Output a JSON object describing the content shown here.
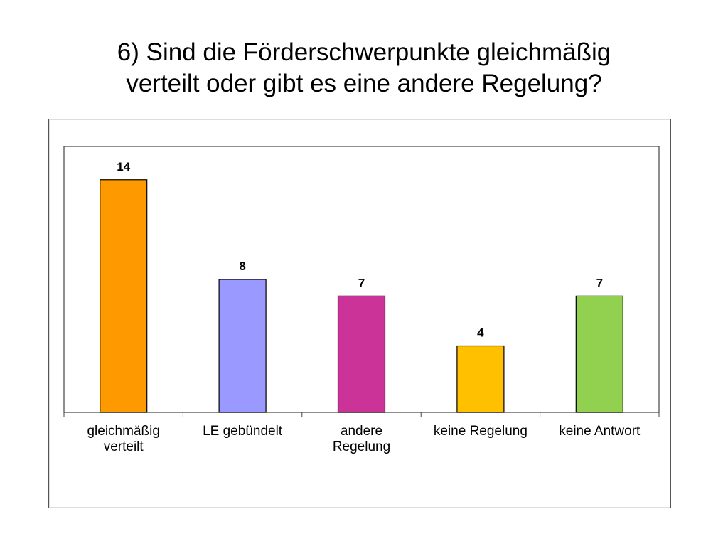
{
  "title": {
    "line1": "6) Sind die Förderschwerpunkte gleichmäßig",
    "line2": "verteilt oder gibt es eine andere Regelung?"
  },
  "chart_data": {
    "type": "bar",
    "categories": [
      [
        "gleichmäßig",
        "verteilt"
      ],
      [
        "LE gebündelt"
      ],
      [
        "andere",
        "Regelung"
      ],
      [
        "keine Regelung"
      ],
      [
        "keine Antwort"
      ]
    ],
    "values": [
      14,
      8,
      7,
      4,
      7
    ],
    "colors": [
      "#FF9900",
      "#9999FF",
      "#CC3399",
      "#FFC000",
      "#92D050"
    ],
    "ylim": [
      0,
      16
    ],
    "grid": false,
    "legend": "none",
    "data_labels": true
  }
}
